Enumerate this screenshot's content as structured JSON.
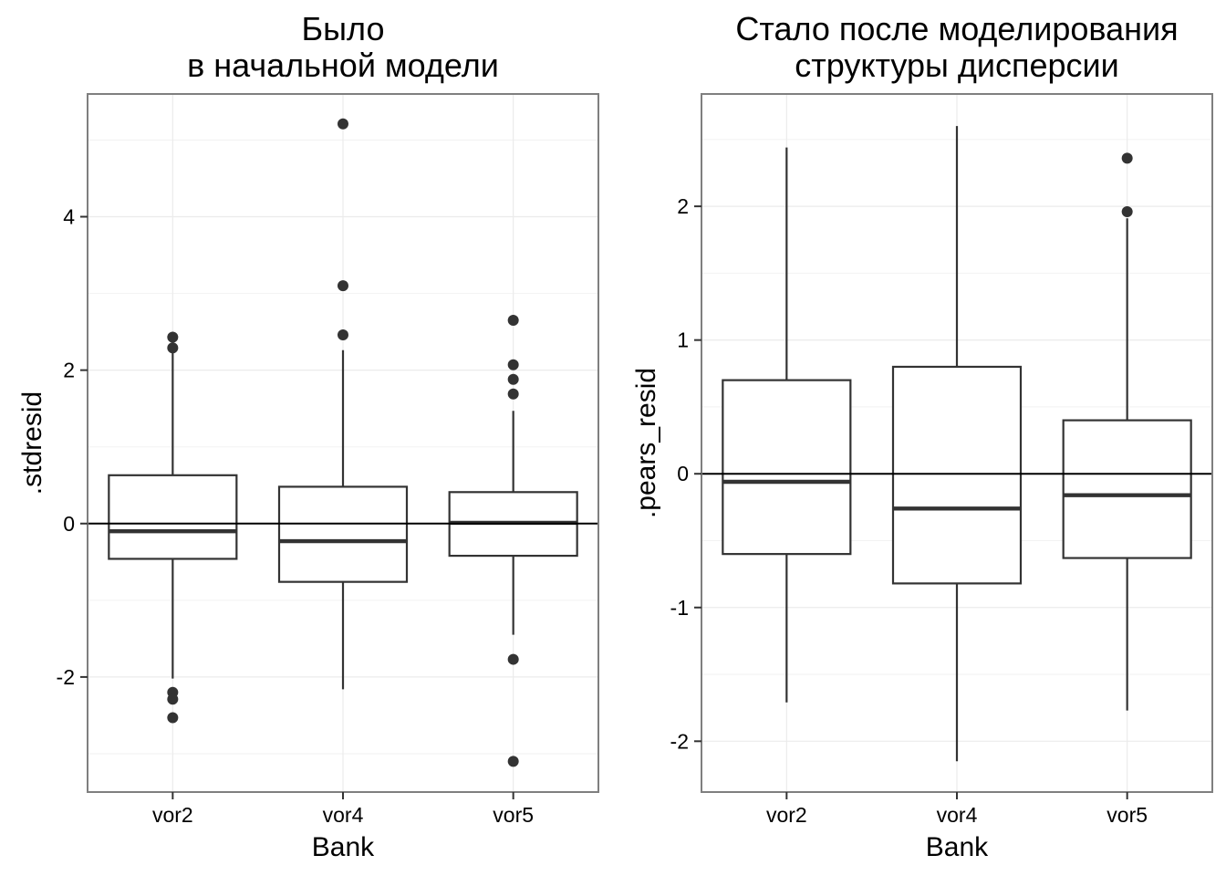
{
  "chart_data": [
    {
      "type": "boxplot",
      "title_lines": [
        "Было",
        "в начальной модели"
      ],
      "xlabel": "Bank",
      "ylabel": ".stdresid",
      "categories": [
        "vor2",
        "vor4",
        "vor5"
      ],
      "yticks": [
        -2,
        0,
        2,
        4
      ],
      "ylim": [
        -3.5,
        5.6
      ],
      "hline": 0,
      "grid": true,
      "boxes": [
        {
          "category": "vor2",
          "lower_whisker": -2.02,
          "q1": -0.46,
          "median": -0.1,
          "q3": 0.63,
          "upper_whisker": 2.26,
          "outliers": [
            2.43,
            2.29,
            -2.2,
            -2.29,
            -2.53
          ]
        },
        {
          "category": "vor4",
          "lower_whisker": -2.16,
          "q1": -0.76,
          "median": -0.23,
          "q3": 0.48,
          "upper_whisker": 2.26,
          "outliers": [
            5.21,
            3.1,
            2.46
          ]
        },
        {
          "category": "vor5",
          "lower_whisker": -1.45,
          "q1": -0.42,
          "median": 0.01,
          "q3": 0.41,
          "upper_whisker": 1.47,
          "outliers": [
            2.65,
            2.07,
            1.88,
            1.69,
            -1.77,
            -3.1
          ]
        }
      ]
    },
    {
      "type": "boxplot",
      "title_lines": [
        "Стало после моделирования",
        "структуры дисперсии"
      ],
      "xlabel": "Bank",
      "ylabel": ".pears_resid",
      "categories": [
        "vor2",
        "vor4",
        "vor5"
      ],
      "yticks": [
        -2,
        -1,
        0,
        1,
        2
      ],
      "ylim": [
        -2.38,
        2.84
      ],
      "hline": 0,
      "grid": true,
      "boxes": [
        {
          "category": "vor2",
          "lower_whisker": -1.71,
          "q1": -0.6,
          "median": -0.06,
          "q3": 0.7,
          "upper_whisker": 2.44,
          "outliers": []
        },
        {
          "category": "vor4",
          "lower_whisker": -2.15,
          "q1": -0.82,
          "median": -0.26,
          "q3": 0.8,
          "upper_whisker": 2.6,
          "outliers": []
        },
        {
          "category": "vor5",
          "lower_whisker": -1.77,
          "q1": -0.63,
          "median": -0.16,
          "q3": 0.4,
          "upper_whisker": 1.91,
          "outliers": [
            2.36,
            1.96
          ]
        }
      ]
    }
  ]
}
